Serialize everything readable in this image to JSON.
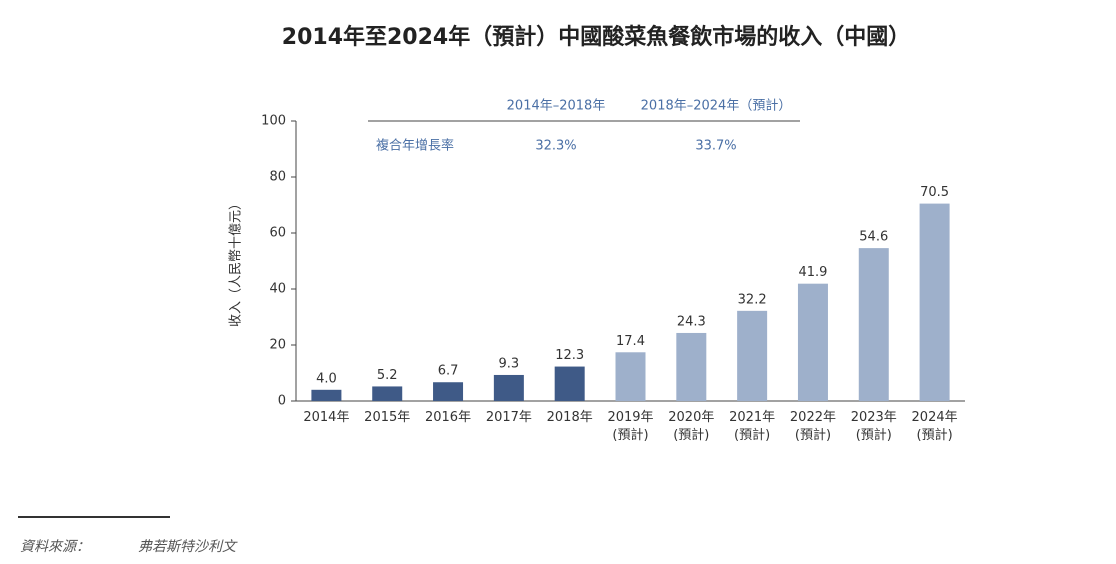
{
  "chart_data": {
    "type": "bar",
    "title": "2014年至2024年（預計）中國酸菜魚餐飲市場的收入（中國）",
    "y_label": "收入（人民幣十億元）",
    "categories": [
      "2014年",
      "2015年",
      "2016年",
      "2017年",
      "2018年",
      "2019年\n(預計)",
      "2020年\n(預計)",
      "2021年\n(預計)",
      "2022年\n(預計)",
      "2023年\n(預計)",
      "2024年\n(預計)"
    ],
    "values": [
      4.0,
      5.2,
      6.7,
      9.3,
      12.3,
      17.4,
      24.3,
      32.2,
      41.9,
      54.6,
      70.5
    ],
    "value_labels": [
      "4.0",
      "5.2",
      "6.7",
      "9.3",
      "12.3",
      "17.4",
      "24.3",
      "32.2",
      "41.9",
      "54.6",
      "70.5"
    ],
    "colors": [
      "#3f5a87",
      "#3f5a87",
      "#3f5a87",
      "#3f5a87",
      "#3f5a87",
      "#9eb0cb",
      "#9eb0cb",
      "#9eb0cb",
      "#9eb0cb",
      "#9eb0cb",
      "#9eb0cb"
    ],
    "ylim": [
      0,
      100
    ],
    "yticks": [
      0,
      20,
      40,
      60,
      80,
      100
    ],
    "grid": false,
    "cagr": {
      "label": "複合年增長率",
      "periods": [
        "2014年–2018年",
        "2018年–2024年（預計）"
      ],
      "values": [
        32.3,
        33.7
      ],
      "value_labels": [
        "32.3%",
        "33.7%"
      ]
    },
    "source": {
      "label": "資料來源：",
      "text": "弗若斯特沙利文"
    }
  }
}
